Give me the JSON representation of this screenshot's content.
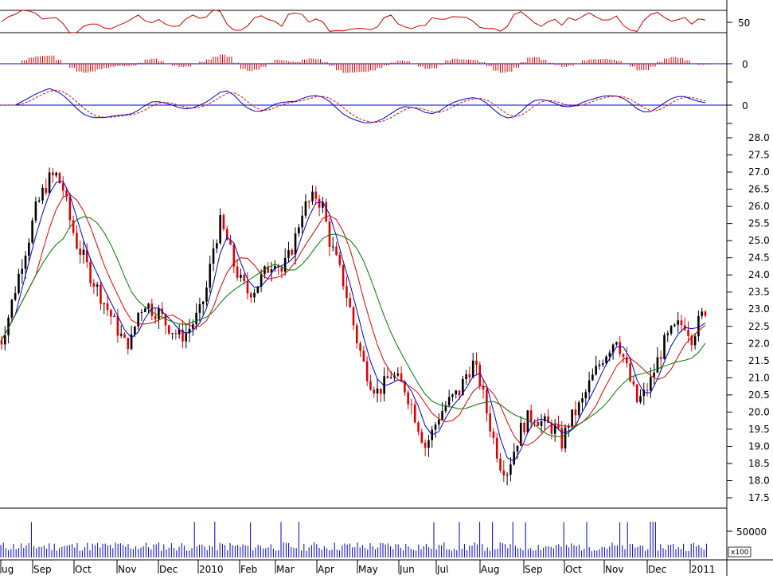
{
  "chart_data": {
    "type": "candlestick",
    "x_months": [
      "ug",
      "Sep",
      "Oct",
      "Nov",
      "Dec",
      "2010",
      "Feb",
      "Mar",
      "Apr",
      "May",
      "Jun",
      "Jul",
      "Aug",
      "Sep",
      "Oct",
      "Nov",
      "Dec",
      "2011"
    ],
    "price": {
      "y_ticks": [
        "17.5",
        "18.0",
        "18.5",
        "19.0",
        "19.5",
        "20.0",
        "20.5",
        "21.0",
        "21.5",
        "22.0",
        "22.5",
        "23.0",
        "23.5",
        "24.0",
        "24.5",
        "25.0",
        "25.5",
        "26.0",
        "26.5",
        "27.0",
        "27.5",
        "28.0"
      ],
      "ylim": [
        17.25,
        28.25
      ],
      "close_approx": [
        22.1,
        22.8,
        23.6,
        24.4,
        25.1,
        25.9,
        26.4,
        26.8,
        26.9,
        26.5,
        25.6,
        24.9,
        24.5,
        24.0,
        23.6,
        23.2,
        22.8,
        22.4,
        22.0,
        22.1,
        22.9,
        23.2,
        23.0,
        22.9,
        22.6,
        22.4,
        22.2,
        22.3,
        22.6,
        22.9,
        23.6,
        24.8,
        25.5,
        25.0,
        24.3,
        23.8,
        23.5,
        23.6,
        23.9,
        24.2,
        24.5,
        24.1,
        24.5,
        25.1,
        25.9,
        26.1,
        26.3,
        26.0,
        25.0,
        24.4,
        23.8,
        23.0,
        22.1,
        21.4,
        20.9,
        20.6,
        20.8,
        21.1,
        20.9,
        20.7,
        20.2,
        19.6,
        19.0,
        19.4,
        19.9,
        20.2,
        20.4,
        20.6,
        21.1,
        21.4,
        20.9,
        20.0,
        19.2,
        18.5,
        18.3,
        18.9,
        19.5,
        19.8,
        19.9,
        19.7,
        19.6,
        19.5,
        19.1,
        19.7,
        20.0,
        20.3,
        20.8,
        21.2,
        21.6,
        21.9,
        22.2,
        21.6,
        20.9,
        20.3,
        20.5,
        20.9,
        21.5,
        22.0,
        22.3,
        22.5,
        22.6,
        22.2,
        22.6,
        23.0
      ],
      "ma_fast": "blue",
      "ma_mid": "red",
      "ma_slow": "green"
    },
    "rsi": {
      "y_label": "50",
      "upper_line": 70,
      "lower_line": 30
    },
    "macd_hist": {
      "y_label": "0"
    },
    "macd": {
      "y_label": "0"
    },
    "volume": {
      "y_label": "50000",
      "unit_label": "x100"
    }
  },
  "colors": {
    "up": "#000000",
    "down": "#dd0000",
    "ma_fast": "#0000cc",
    "ma_mid": "#dd0000",
    "ma_slow": "#007700",
    "volume": "#0000cc",
    "rsi": "#cc0000"
  }
}
